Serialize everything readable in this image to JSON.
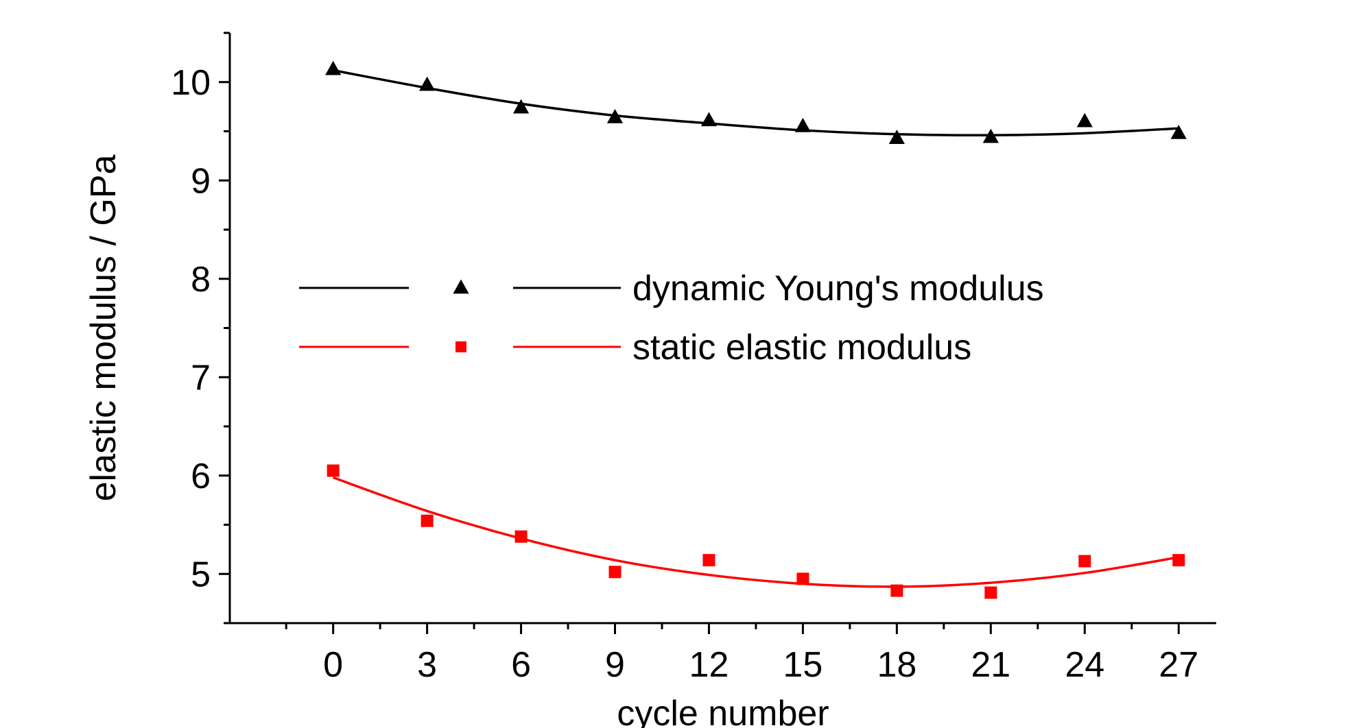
{
  "chart_data": {
    "type": "scatter",
    "title": "",
    "xlabel": "cycle number",
    "ylabel": "elastic modulus / GPa",
    "xlim": [
      -3.3,
      28.2
    ],
    "ylim": [
      4.5,
      10.5
    ],
    "xticks": [
      0,
      3,
      6,
      9,
      12,
      15,
      18,
      21,
      24,
      27
    ],
    "xtick_labels": [
      "0",
      "3",
      "6",
      "9",
      "12",
      "15",
      "18",
      "21",
      "24",
      "27"
    ],
    "yticks": [
      5,
      6,
      7,
      8,
      9,
      10
    ],
    "ytick_labels": [
      "5",
      "6",
      "7",
      "8",
      "9",
      "10"
    ],
    "grid": false,
    "legend_position": "center",
    "series": [
      {
        "name": "dynamic Young's modulus",
        "marker": "triangle",
        "color": "#000000",
        "x": [
          0,
          3,
          6,
          9,
          12,
          15,
          18,
          21,
          24,
          27
        ],
        "y": [
          10.13,
          9.97,
          9.74,
          9.64,
          9.61,
          9.55,
          9.43,
          9.44,
          9.6,
          9.48
        ],
        "fit": {
          "x": [
            0,
            3,
            6,
            9,
            12,
            15,
            18,
            21,
            24,
            27
          ],
          "y": [
            10.12,
            9.94,
            9.78,
            9.66,
            9.58,
            9.51,
            9.47,
            9.46,
            9.48,
            9.53
          ]
        }
      },
      {
        "name": "static elastic modulus",
        "marker": "square",
        "color": "#ff0000",
        "x": [
          0,
          3,
          6,
          9,
          12,
          15,
          18,
          21,
          24,
          27
        ],
        "y": [
          6.05,
          5.54,
          5.38,
          5.02,
          5.14,
          4.95,
          4.83,
          4.81,
          5.13,
          5.14
        ],
        "fit": {
          "x": [
            0,
            3,
            6,
            9,
            12,
            15,
            18,
            21,
            24,
            27
          ],
          "y": [
            5.98,
            5.64,
            5.36,
            5.14,
            4.99,
            4.9,
            4.87,
            4.91,
            5.01,
            5.17
          ]
        }
      }
    ]
  }
}
